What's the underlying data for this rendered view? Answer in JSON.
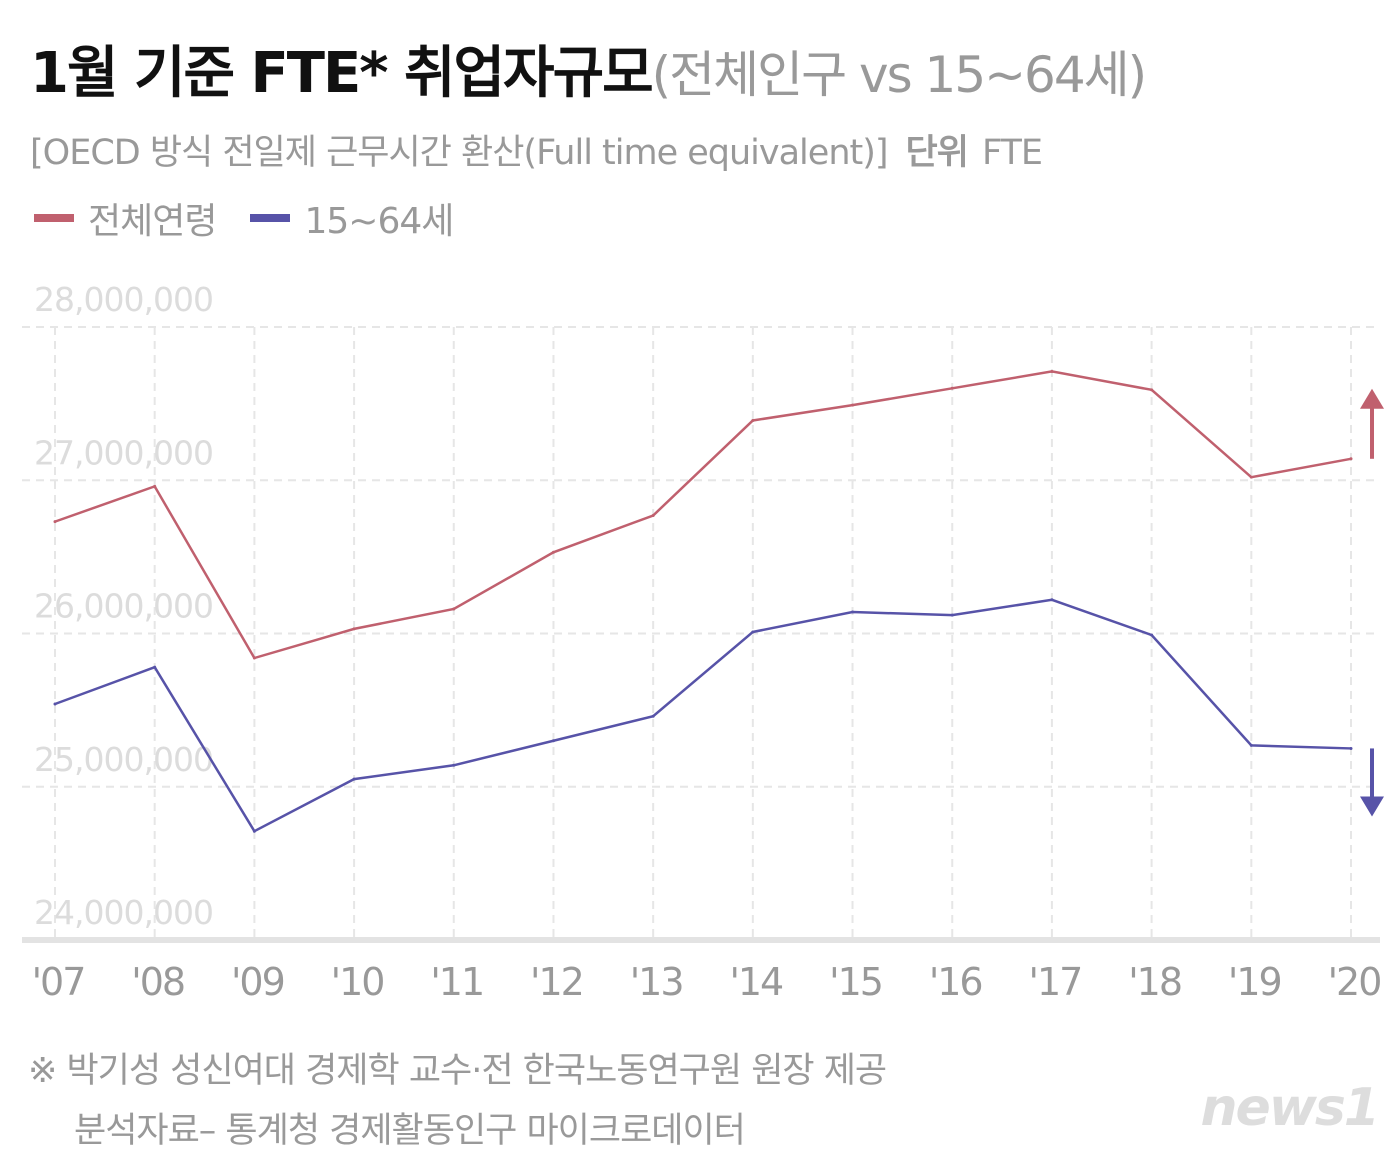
{
  "header": {
    "title": "1월 기준 FTE* 취업자규모",
    "title_sub": "(전체인구 vs 15~64세)",
    "subtitle": "[OECD 방식 전일제 근무시간 환산(Full time equivalent)]",
    "unit_label": "단위",
    "unit": "FTE"
  },
  "footer": {
    "note1": "※ 박기성 성신여대 경제학 교수·전 한국노동연구원 원장 제공",
    "note2": "분석자료– 통계청 경제활동인구 마이크로데이터",
    "logo": "news1"
  },
  "chart_data": {
    "type": "line",
    "title": "1월 기준 FTE* 취업자규모(전체인구 vs 15~64세)",
    "categories": [
      "'07",
      "'08",
      "'09",
      "'10",
      "'11",
      "'12",
      "'13",
      "'14",
      "'15",
      "'16",
      "'17",
      "'18",
      "'19",
      "'20"
    ],
    "ylim": [
      24000000,
      28000000
    ],
    "yticks": [
      28000000,
      27000000,
      26000000,
      25000000,
      24000000
    ],
    "ytick_labels": [
      "28,000,000",
      "27,000,000",
      "26,000,000",
      "25,000,000",
      "24,000,000"
    ],
    "grid": true,
    "legend_position": "top-left",
    "series": [
      {
        "name": "전체연령",
        "color": "#c0606e",
        "trend": "up",
        "values": [
          26730000,
          26960000,
          25840000,
          26030000,
          26160000,
          26530000,
          26770000,
          27390000,
          27490000,
          27600000,
          27710000,
          27590000,
          27020000,
          27140000
        ]
      },
      {
        "name": "15~64세",
        "color": "#5753a8",
        "trend": "down",
        "values": [
          25540000,
          25780000,
          24710000,
          25050000,
          25140000,
          25300000,
          25460000,
          26010000,
          26140000,
          26120000,
          26220000,
          25990000,
          25270000,
          25250000
        ]
      }
    ]
  }
}
